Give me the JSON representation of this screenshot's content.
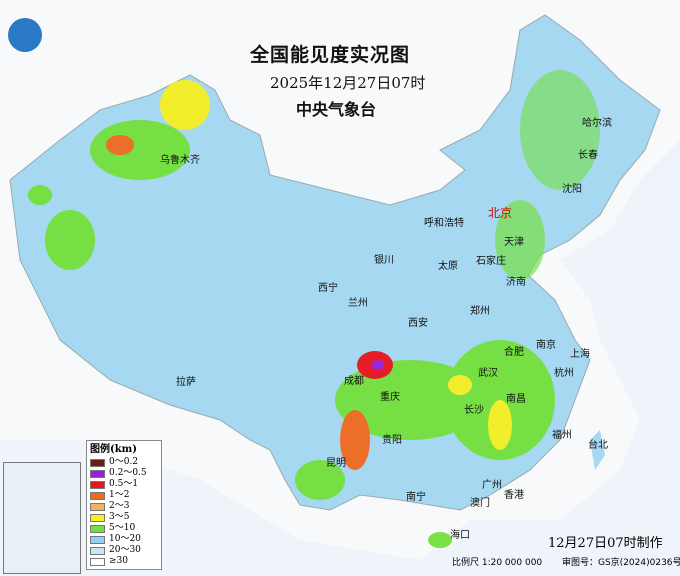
{
  "header": {
    "title": "全国能见度实况图",
    "datetime": "2025年12月27日07时",
    "organization": "中央气象台"
  },
  "legend": {
    "title": "图例(km)",
    "items": [
      {
        "label": "0～0.2",
        "color": "#6b1e0e"
      },
      {
        "label": "0.2～0.5",
        "color": "#9b1de0"
      },
      {
        "label": "0.5～1",
        "color": "#e8141e"
      },
      {
        "label": "1～2",
        "color": "#f06a1e"
      },
      {
        "label": "2～3",
        "color": "#f5b060"
      },
      {
        "label": "3～5",
        "color": "#f6f020"
      },
      {
        "label": "5～10",
        "color": "#72e03a"
      },
      {
        "label": "10～20",
        "color": "#8ed0f0"
      },
      {
        "label": "20～30",
        "color": "#c8e8f8"
      },
      {
        "label": "≥30",
        "color": "#ffffff"
      }
    ]
  },
  "cities": [
    "乌鲁木齐",
    "哈尔滨",
    "长春",
    "沈阳",
    "呼和浩特",
    "北京",
    "天津",
    "石家庄",
    "太原",
    "银川",
    "济南",
    "西宁",
    "兰州",
    "郑州",
    "西安",
    "合肥",
    "南京",
    "上海",
    "拉萨",
    "成都",
    "武汉",
    "杭州",
    "重庆",
    "长沙",
    "南昌",
    "贵阳",
    "福州",
    "台北",
    "昆明",
    "南宁",
    "广州",
    "澳门",
    "香港",
    "海口"
  ],
  "footer": {
    "made": "12月27日07时制作",
    "scale": "比例尺 1:20 000 000",
    "review": "审图号：GS京(2024)0236号"
  }
}
